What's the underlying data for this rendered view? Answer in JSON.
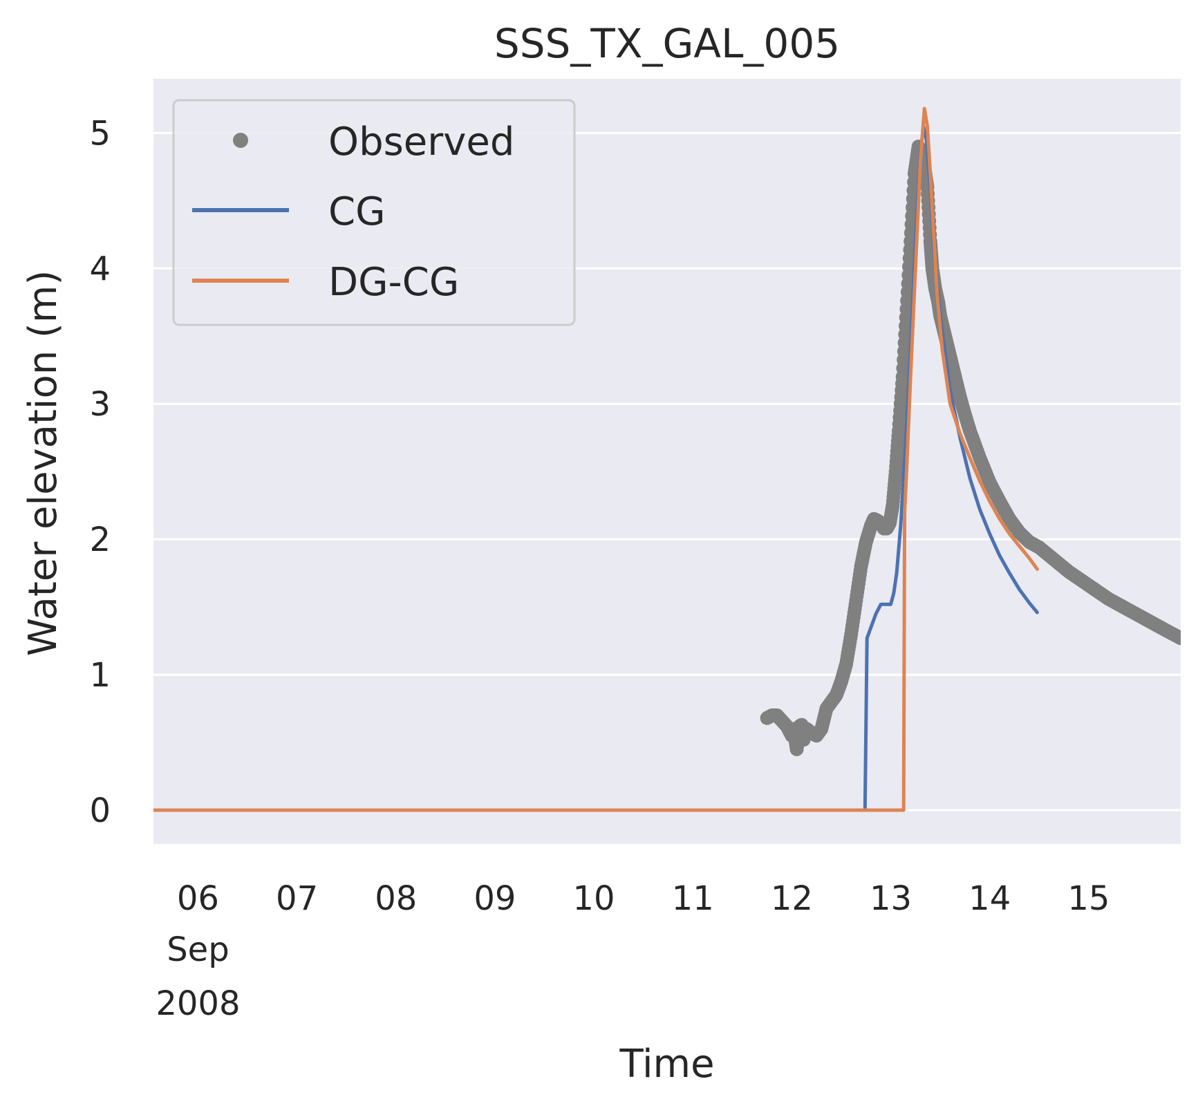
{
  "chart_data": {
    "type": "line",
    "title": "SSS_TX_GAL_005",
    "xlabel": "Time",
    "ylabel": "Water elevation (m)",
    "xlim": [
      5.55,
      15.93
    ],
    "ylim": [
      -0.25,
      5.4
    ],
    "grid": true,
    "legend_position": "top-left",
    "x_unit": "day of month, Sep 2008",
    "x_ticks": [
      {
        "value": 6,
        "label": "06",
        "sublabel1": "Sep",
        "sublabel2": "2008"
      },
      {
        "value": 7,
        "label": "07"
      },
      {
        "value": 8,
        "label": "08"
      },
      {
        "value": 9,
        "label": "09"
      },
      {
        "value": 10,
        "label": "10"
      },
      {
        "value": 11,
        "label": "11"
      },
      {
        "value": 12,
        "label": "12"
      },
      {
        "value": 13,
        "label": "13"
      },
      {
        "value": 14,
        "label": "14"
      },
      {
        "value": 15,
        "label": "15"
      }
    ],
    "y_ticks": [
      {
        "value": 0,
        "label": "0"
      },
      {
        "value": 1,
        "label": "1"
      },
      {
        "value": 2,
        "label": "2"
      },
      {
        "value": 3,
        "label": "3"
      },
      {
        "value": 4,
        "label": "4"
      },
      {
        "value": 5,
        "label": "5"
      }
    ],
    "series": [
      {
        "name": "Observed",
        "style": "points",
        "color": "#808080",
        "x": [
          11.75,
          11.8,
          11.85,
          11.9,
          11.95,
          12.0,
          12.02,
          12.05,
          12.08,
          12.1,
          12.12,
          12.15,
          12.2,
          12.25,
          12.3,
          12.35,
          12.4,
          12.45,
          12.5,
          12.55,
          12.6,
          12.65,
          12.7,
          12.75,
          12.8,
          12.83,
          12.86,
          12.9,
          12.93,
          12.96,
          12.99,
          13.02,
          13.05,
          13.08,
          13.12,
          13.16,
          13.2,
          13.24,
          13.28,
          13.31,
          13.34,
          13.37,
          13.4,
          13.42,
          13.45,
          13.48,
          13.5,
          13.55,
          13.6,
          13.65,
          13.7,
          13.75,
          13.8,
          13.9,
          14.0,
          14.1,
          14.2,
          14.3,
          14.4,
          14.5,
          14.6,
          14.7,
          14.8,
          14.9,
          15.0,
          15.1,
          15.2,
          15.3,
          15.4,
          15.5,
          15.6,
          15.7,
          15.8,
          15.93
        ],
        "y": [
          0.68,
          0.7,
          0.7,
          0.66,
          0.62,
          0.55,
          0.6,
          0.45,
          0.62,
          0.63,
          0.52,
          0.6,
          0.57,
          0.55,
          0.6,
          0.75,
          0.8,
          0.85,
          0.95,
          1.08,
          1.3,
          1.55,
          1.8,
          1.98,
          2.1,
          2.15,
          2.14,
          2.12,
          2.08,
          2.08,
          2.12,
          2.25,
          2.5,
          2.8,
          3.2,
          3.7,
          4.2,
          4.7,
          4.9,
          4.85,
          4.75,
          4.6,
          4.2,
          4.0,
          3.85,
          3.75,
          3.65,
          3.5,
          3.35,
          3.2,
          3.05,
          2.92,
          2.8,
          2.6,
          2.42,
          2.28,
          2.15,
          2.05,
          1.98,
          1.94,
          1.88,
          1.82,
          1.76,
          1.71,
          1.66,
          1.61,
          1.56,
          1.52,
          1.48,
          1.44,
          1.4,
          1.36,
          1.32,
          1.27
        ]
      },
      {
        "name": "CG",
        "style": "line",
        "color": "#4c72b0",
        "x": [
          5.55,
          12.74,
          12.76,
          12.8,
          12.85,
          12.9,
          12.95,
          13.0,
          13.03,
          13.06,
          13.1,
          13.15,
          13.2,
          13.25,
          13.3,
          13.33,
          13.36,
          13.4,
          13.44,
          13.5,
          13.6,
          13.7,
          13.8,
          13.9,
          14.0,
          14.1,
          14.2,
          14.3,
          14.4,
          14.48
        ],
        "y": [
          0.0,
          0.0,
          1.27,
          1.35,
          1.45,
          1.52,
          1.52,
          1.52,
          1.6,
          1.75,
          2.1,
          2.7,
          3.4,
          4.2,
          4.85,
          5.05,
          4.95,
          4.6,
          4.1,
          3.65,
          3.1,
          2.75,
          2.45,
          2.22,
          2.04,
          1.88,
          1.75,
          1.63,
          1.53,
          1.46
        ]
      },
      {
        "name": "DG-CG",
        "style": "line",
        "color": "#dd8452",
        "x": [
          5.55,
          13.13,
          13.14,
          13.16,
          13.2,
          13.25,
          13.3,
          13.34,
          13.37,
          13.4,
          13.43,
          13.47,
          13.52,
          13.6,
          13.7,
          13.8,
          13.9,
          14.0,
          14.1,
          14.2,
          14.3,
          14.4,
          14.48
        ],
        "y": [
          0.0,
          0.0,
          2.2,
          2.5,
          3.2,
          4.0,
          4.8,
          5.18,
          5.05,
          4.7,
          4.3,
          3.8,
          3.4,
          3.0,
          2.78,
          2.6,
          2.43,
          2.28,
          2.15,
          2.04,
          1.95,
          1.86,
          1.78
        ]
      }
    ]
  }
}
